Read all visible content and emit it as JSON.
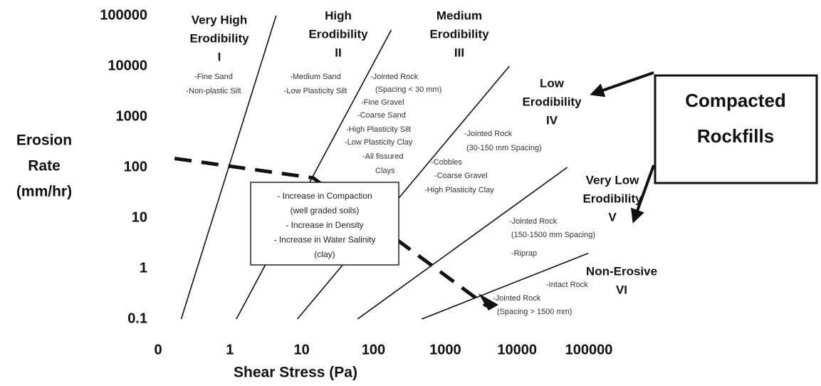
{
  "chart_data": {
    "type": "line",
    "xlabel": "Shear Stress (Pa)",
    "ylabel": [
      "Erosion",
      "Rate",
      "(mm/hr)"
    ],
    "xscale": "log",
    "yscale": "log",
    "xlim": [
      0.1,
      100000
    ],
    "ylim": [
      0.1,
      100000
    ],
    "xticks": [
      {
        "value": 0.1,
        "label": "0"
      },
      1,
      10,
      100,
      1000,
      10000,
      100000
    ],
    "yticks": [
      0.1,
      1,
      10,
      100,
      1000,
      10000,
      100000
    ],
    "grid": false,
    "series": [
      {
        "color": "#111111",
        "x": [
          0.21,
          4.4
        ],
        "values": [
          0.1,
          100000
        ]
      },
      {
        "color": "#111111",
        "x": [
          1.23,
          177
        ],
        "values": [
          0.1,
          52000
        ]
      },
      {
        "color": "#111111",
        "x": [
          8.7,
          7800
        ],
        "values": [
          0.1,
          10000
        ]
      },
      {
        "color": "#111111",
        "x": [
          60,
          50000
        ],
        "values": [
          0.1,
          100
        ]
      },
      {
        "color": "#111111",
        "x": [
          470,
          98000
        ],
        "values": [
          0.1,
          2
        ]
      },
      {
        "color": "#111111",
        "dash": true,
        "x": [
          0.17,
          14.4,
          3800
        ],
        "values": [
          150,
          62,
          0.18
        ]
      }
    ],
    "zones": [
      {
        "name": [
          "Very High",
          "Erodibility",
          "I"
        ],
        "materials": [
          "-Fine Sand",
          "-Non-plastic Silt"
        ]
      },
      {
        "name": [
          "High",
          "Erodibility",
          "II"
        ],
        "materials": [
          "-Medium Sand",
          "-Low Plasticity Silt"
        ]
      },
      {
        "name": [
          "Medium",
          "Erodibility",
          "III"
        ],
        "materials": [
          "-Jointed Rock",
          "(Spacing < 30 mm)",
          "-Fine Gravel",
          "-Coarse Sand",
          "-High Plasticity Silt",
          "-Low Plasticity Clay",
          "-All fissured",
          "Clays"
        ]
      },
      {
        "name": [
          "Low",
          "Erodibility",
          "IV"
        ],
        "materials": [
          "-Jointed Rock",
          "(30-150 mm Spacing)",
          "-Cobbles",
          "-Coarse Gravel",
          "-High Plasticity Clay"
        ]
      },
      {
        "name": [
          "Very Low",
          "Erodibility",
          "V"
        ],
        "materials": [
          "-Jointed Rock",
          "(150-1500 mm Spacing)",
          "-Riprap"
        ]
      },
      {
        "name": [
          "Non-Erosive",
          "VI"
        ],
        "materials": [
          "-Intact Rock",
          "-Jointed Rock",
          "(Spacing > 1500 mm)"
        ]
      }
    ],
    "note": [
      "- Increase in Compaction",
      "(well graded soils)",
      "- Increase in Density",
      "- Increase in Water Salinity",
      "(clay)"
    ],
    "callout": [
      "Compacted",
      "Rockfills"
    ]
  }
}
